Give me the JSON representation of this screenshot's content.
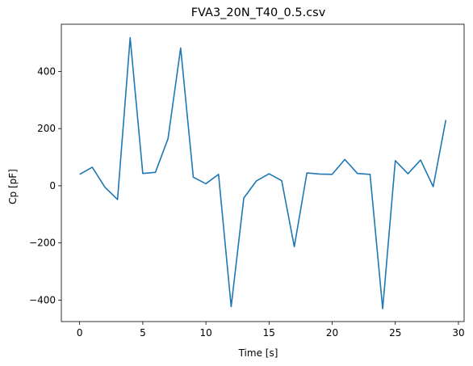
{
  "chart_data": {
    "type": "line",
    "title": "FVA3_20N_T40_0.5.csv",
    "xlabel": "Time [s]",
    "ylabel": "Cp [pF]",
    "xlim": [
      -1.45,
      30.45
    ],
    "ylim": [
      -475,
      565
    ],
    "xticks": [
      0,
      5,
      10,
      15,
      20,
      25,
      30
    ],
    "yticks": [
      -400,
      -200,
      0,
      200,
      400
    ],
    "grid": false,
    "series": [
      {
        "color": "#1f77b4",
        "x": [
          0,
          1,
          2,
          3,
          4,
          5,
          6,
          7,
          8,
          9,
          10,
          11,
          12,
          13,
          14,
          15,
          16,
          17,
          18,
          19,
          20,
          21,
          22,
          23,
          24,
          25,
          26,
          27,
          28,
          29
        ],
        "y": [
          40,
          65,
          -5,
          -48,
          518,
          43,
          47,
          165,
          482,
          30,
          7,
          40,
          -423,
          -43,
          17,
          42,
          18,
          -213,
          45,
          41,
          40,
          92,
          43,
          40,
          -430,
          88,
          42,
          90,
          -3,
          230
        ]
      }
    ]
  }
}
